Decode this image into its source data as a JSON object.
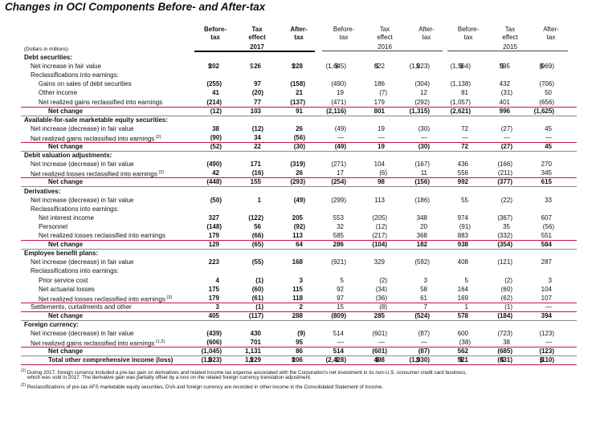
{
  "title": "Changes in OCI Components Before- and After-tax",
  "units": "(Dollars in millions)",
  "column_headers": [
    [
      "Before-",
      "tax"
    ],
    [
      "Tax",
      "effect"
    ],
    [
      "After-",
      "tax"
    ],
    [
      "Before-",
      "tax"
    ],
    [
      "Tax",
      "effect"
    ],
    [
      "After-",
      "tax"
    ],
    [
      "Before-",
      "tax"
    ],
    [
      "Tax",
      "effect"
    ],
    [
      "After-",
      "tax"
    ]
  ],
  "years": [
    "2017",
    "2016",
    "2015"
  ],
  "rows": [
    {
      "label": "Debt securities:",
      "type": "section",
      "cells": []
    },
    {
      "label": "Net increase in fair value",
      "indent": 1,
      "cells": [
        "$ 202",
        "$ 26",
        "$ 228",
        "$ (1,645)",
        "$ 622",
        "$ (1,023)",
        "$ (1,564)",
        "$ 595",
        "$ (969)"
      ]
    },
    {
      "label": "Reclassifications into earnings:",
      "indent": 1,
      "cells": []
    },
    {
      "label": "Gains on sales of debt securities",
      "indent": 2,
      "cells": [
        "(255)",
        "97",
        "(158)",
        "(490)",
        "186",
        "(304)",
        "(1,138)",
        "432",
        "(706)"
      ]
    },
    {
      "label": "Other income",
      "indent": 2,
      "cells": [
        "41",
        "(20)",
        "21",
        "19",
        "(7)",
        "12",
        "81",
        "(31)",
        "50"
      ]
    },
    {
      "label": "Net realized gains reclassified into earnings",
      "indent": 2,
      "line": "red",
      "cells": [
        "(214)",
        "77",
        "(137)",
        "(471)",
        "179",
        "(292)",
        "(1,057)",
        "401",
        "(656)"
      ]
    },
    {
      "label": "Net change",
      "indent": 3,
      "type": "total",
      "line": "gray",
      "cells": [
        "(12)",
        "103",
        "91",
        "(2,116)",
        "801",
        "(1,315)",
        "(2,621)",
        "996",
        "(1,625)"
      ]
    },
    {
      "label": "Available-for-sale marketable equity securities:",
      "type": "section",
      "cells": []
    },
    {
      "label": "Net increase (decrease) in fair value",
      "indent": 1,
      "cells": [
        "38",
        "(12)",
        "26",
        "(49)",
        "19",
        "(30)",
        "72",
        "(27)",
        "45"
      ]
    },
    {
      "label": "Net realized gains reclassified into earnings",
      "sup": "(2)",
      "indent": 1,
      "line": "red",
      "cells": [
        "(90)",
        "34",
        "(56)",
        "—",
        "—",
        "—",
        "—",
        "—",
        "—"
      ]
    },
    {
      "label": "Net change",
      "indent": 3,
      "type": "total",
      "line": "gray",
      "cells": [
        "(52)",
        "22",
        "(30)",
        "(49)",
        "19",
        "(30)",
        "72",
        "(27)",
        "45"
      ]
    },
    {
      "label": "Debit valuation adjustments:",
      "type": "section",
      "cells": []
    },
    {
      "label": "Net increase (decrease) in fair value",
      "indent": 1,
      "cells": [
        "(490)",
        "171",
        "(319)",
        "(271)",
        "104",
        "(167)",
        "436",
        "(166)",
        "270"
      ]
    },
    {
      "label": "Net realized losses reclassified into earnings",
      "sup": "(2)",
      "indent": 1,
      "line": "red",
      "cells": [
        "42",
        "(16)",
        "26",
        "17",
        "(6)",
        "11",
        "556",
        "(211)",
        "345"
      ]
    },
    {
      "label": "Net change",
      "indent": 3,
      "type": "total",
      "line": "gray",
      "cells": [
        "(448)",
        "155",
        "(293)",
        "(254)",
        "98",
        "(156)",
        "992",
        "(377)",
        "615"
      ]
    },
    {
      "label": "Derivatives:",
      "type": "section",
      "cells": []
    },
    {
      "label": "Net increase (decrease) in fair value",
      "indent": 1,
      "cells": [
        "(50)",
        "1",
        "(49)",
        "(299)",
        "113",
        "(186)",
        "55",
        "(22)",
        "33"
      ]
    },
    {
      "label": "Reclassifications into earnings:",
      "indent": 1,
      "cells": []
    },
    {
      "label": "Net interest income",
      "indent": 2,
      "cells": [
        "327",
        "(122)",
        "205",
        "553",
        "(205)",
        "348",
        "974",
        "(367)",
        "607"
      ]
    },
    {
      "label": "Personnel",
      "indent": 2,
      "cells": [
        "(148)",
        "56",
        "(92)",
        "32",
        "(12)",
        "20",
        "(91)",
        "35",
        "(56)"
      ]
    },
    {
      "label": "Net realized losses reclassified into earnings",
      "indent": 2,
      "line": "red",
      "cells": [
        "179",
        "(66)",
        "113",
        "585",
        "(217)",
        "368",
        "883",
        "(332)",
        "551"
      ]
    },
    {
      "label": "Net change",
      "indent": 3,
      "type": "total",
      "line": "gray",
      "cells": [
        "129",
        "(65)",
        "64",
        "286",
        "(104)",
        "182",
        "938",
        "(354)",
        "584"
      ]
    },
    {
      "label": "Employee benefit plans:",
      "type": "section",
      "cells": []
    },
    {
      "label": "Net increase (decrease) in fair value",
      "indent": 1,
      "cells": [
        "223",
        "(55)",
        "168",
        "(921)",
        "329",
        "(592)",
        "408",
        "(121)",
        "287"
      ]
    },
    {
      "label": "Reclassifications into earnings:",
      "indent": 1,
      "cells": []
    },
    {
      "label": "Prior service cost",
      "indent": 2,
      "cells": [
        "4",
        "(1)",
        "3",
        "5",
        "(2)",
        "3",
        "5",
        "(2)",
        "3"
      ]
    },
    {
      "label": "Net actuarial losses",
      "indent": 2,
      "cells": [
        "175",
        "(60)",
        "115",
        "92",
        "(34)",
        "58",
        "164",
        "(60)",
        "104"
      ]
    },
    {
      "label": "Net realized losses reclassified into earnings",
      "sup": "(3)",
      "indent": 2,
      "line": "red",
      "cells": [
        "179",
        "(61)",
        "118",
        "97",
        "(36)",
        "61",
        "169",
        "(62)",
        "107"
      ]
    },
    {
      "label": "Settlements, curtailments and other",
      "indent": 1,
      "line": "red",
      "cells": [
        "3",
        "(1)",
        "2",
        "15",
        "(8)",
        "7",
        "1",
        "(1)",
        "—"
      ]
    },
    {
      "label": "Net change",
      "indent": 3,
      "type": "total",
      "line": "gray",
      "cells": [
        "405",
        "(117)",
        "288",
        "(809)",
        "285",
        "(524)",
        "578",
        "(184)",
        "394"
      ]
    },
    {
      "label": "Foreign currency:",
      "type": "section",
      "cells": []
    },
    {
      "label": "Net increase (decrease) in fair value",
      "indent": 1,
      "cells": [
        "(439)",
        "430",
        "(9)",
        "514",
        "(601)",
        "(87)",
        "600",
        "(723)",
        "(123)"
      ]
    },
    {
      "label": "Net realized gains reclassified into earnings",
      "sup": "(1,2)",
      "indent": 1,
      "line": "red",
      "cells": [
        "(606)",
        "701",
        "95",
        "—",
        "—",
        "—",
        "(38)",
        "38",
        "—"
      ]
    },
    {
      "label": "Net change",
      "indent": 3,
      "type": "total",
      "line": "gray",
      "cells": [
        "(1,045)",
        "1,131",
        "86",
        "514",
        "(601)",
        "(87)",
        "562",
        "(685)",
        "(123)"
      ]
    },
    {
      "label": "Total other comprehensive income (loss)",
      "indent": 3,
      "type": "grand",
      "line": "red",
      "cells": [
        "$ (1,023)",
        "$ 1,229",
        "$ 206",
        "$ (2,428)",
        "$ 498",
        "$ (1,930)",
        "$ 521",
        "$ (631)",
        "$ (110)"
      ]
    }
  ],
  "footnotes": [
    {
      "num": "(1)",
      "text": "During 2017, foreign currency included a pre-tax gain on derivatives and related income tax expense associated with the Corporation's net investment in its non-U.S. consumer credit card business,"
    },
    {
      "num": "",
      "text": "which was sold in 2017. The derivative gain was partially offset by a loss on the related foreign currency translation adjustment."
    },
    {
      "num": "(2)",
      "text": "Reclassifications of pre-tax AFS marketable equity securities, DVA and foreign currency are recorded in other income in the Consolidated Statement of Income."
    }
  ]
}
